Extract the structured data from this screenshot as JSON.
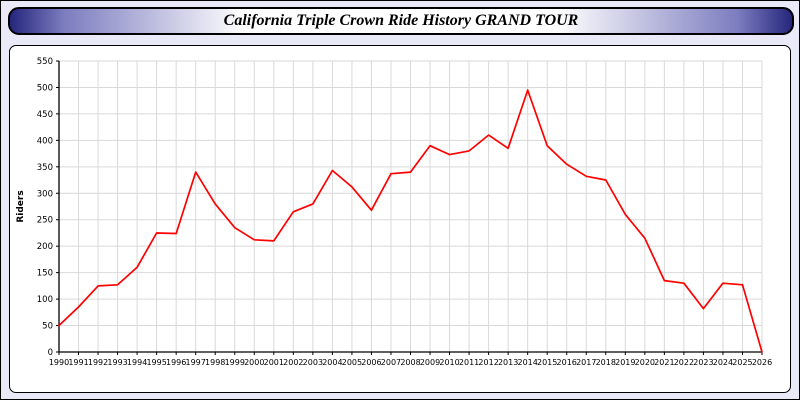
{
  "title": "California Triple Crown Ride History GRAND TOUR",
  "colors": {
    "line": "#ff0000",
    "page_bg": "#e9e9f7",
    "grid": "#d9d9d9",
    "axis": "#000000",
    "titlebar_edge": "#26267e"
  },
  "chart_data": {
    "type": "line",
    "title": "California Triple Crown Ride History GRAND TOUR",
    "xlabel": "",
    "ylabel": "Riders",
    "ylim": [
      0,
      550
    ],
    "ytick_step": 50,
    "grid": true,
    "legend": "none",
    "line_color": "#ff0000",
    "categories": [
      "1990",
      "1991",
      "1992",
      "1993",
      "1994",
      "1995",
      "1996",
      "1997",
      "1998",
      "1999",
      "2000",
      "2001",
      "2002",
      "2003",
      "2004",
      "2005",
      "2006",
      "2007",
      "2008",
      "2009",
      "2010",
      "2011",
      "2012",
      "2013",
      "2014",
      "2015",
      "2016",
      "2017",
      "2018",
      "2019",
      "2020",
      "2021",
      "2022",
      "2023",
      "2024",
      "2025",
      "2026"
    ],
    "values": [
      50,
      85,
      125,
      127,
      160,
      225,
      224,
      340,
      280,
      235,
      212,
      210,
      265,
      280,
      343,
      312,
      268,
      337,
      340,
      390,
      373,
      380,
      410,
      385,
      495,
      390,
      355,
      332,
      325,
      260,
      215,
      135,
      130,
      82,
      130,
      127,
      0
    ]
  }
}
